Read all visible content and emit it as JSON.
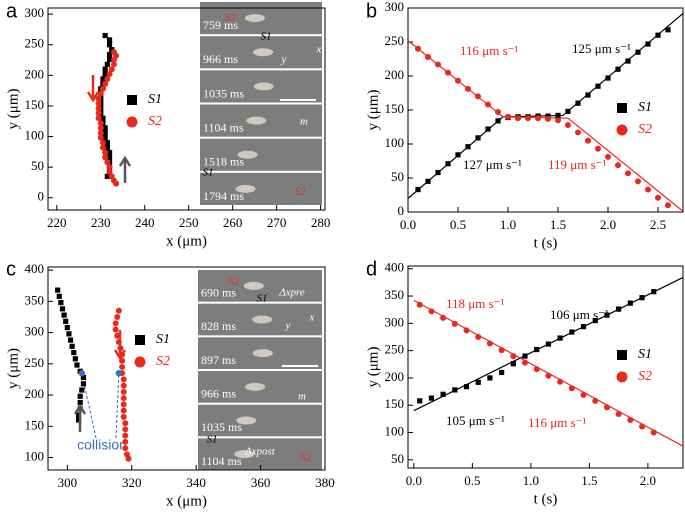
{
  "chart_data": [
    {
      "type": "scatter",
      "panel": "a",
      "x_label": "x (μm)",
      "y_label": "y (μm)",
      "xlim": [
        218,
        281
      ],
      "ylim": [
        -20,
        310
      ],
      "xticks": [
        220,
        230,
        240,
        250,
        260,
        270,
        280
      ],
      "yticks": [
        0,
        50,
        100,
        150,
        200,
        250,
        300
      ],
      "grid": false,
      "series": [
        {
          "name": "S1",
          "color": "#000000",
          "marker": "square",
          "x": [
            231,
            232,
            232,
            232.5,
            232,
            232,
            231.5,
            231,
            231,
            230.5,
            230.5,
            230,
            230,
            230,
            230,
            230,
            230,
            230.5,
            230.5,
            231,
            231,
            231,
            231.5,
            231.5,
            232,
            232,
            232,
            232,
            232,
            231.5
          ],
          "y": [
            265,
            258,
            250,
            242,
            234,
            226,
            218,
            210,
            202,
            194,
            186,
            178,
            170,
            162,
            154,
            146,
            138,
            130,
            122,
            114,
            106,
            98,
            90,
            82,
            74,
            66,
            58,
            50,
            42,
            35
          ]
        },
        {
          "name": "S2",
          "color": "#e8291c",
          "marker": "circle",
          "x": [
            233,
            233.5,
            233,
            233,
            232.5,
            232,
            231.5,
            231,
            230.5,
            230,
            229.5,
            229.5,
            229.5,
            229.5,
            229.5,
            230,
            230,
            230,
            230,
            230.5,
            230.5,
            231,
            231,
            231.5,
            232,
            232,
            232.5,
            233,
            233.5
          ],
          "y": [
            238,
            232,
            225,
            218,
            210,
            202,
            194,
            186,
            178,
            170,
            162,
            154,
            146,
            138,
            130,
            122,
            114,
            106,
            98,
            90,
            82,
            74,
            66,
            58,
            50,
            42,
            35,
            28,
            23
          ]
        }
      ],
      "frames": [
        "759 ms",
        "966 ms",
        "1035 ms",
        "1104 ms",
        "1518 ms",
        "1794 ms"
      ],
      "inset_labels": [
        "S2",
        "S1",
        "x",
        "y",
        "m",
        "S1",
        "S2"
      ]
    },
    {
      "type": "scatter",
      "panel": "b",
      "x_label": "t (s)",
      "y_label": "y (μm)",
      "xlim": [
        0,
        2.75
      ],
      "ylim": [
        0,
        300
      ],
      "xticks": [
        {
          "value": 0,
          "label": "0.0"
        },
        {
          "value": 0.5,
          "label": "0.5"
        },
        {
          "value": 1,
          "label": "1.0"
        },
        {
          "value": 1.5,
          "label": "1.5"
        },
        {
          "value": 2,
          "label": "2.0"
        },
        {
          "value": 2.5,
          "label": "2.5"
        }
      ],
      "yticks": [
        0,
        50,
        100,
        150,
        200,
        250,
        300
      ],
      "grid": false,
      "series": [
        {
          "name": "S1",
          "color": "#000000",
          "marker": "square",
          "x": [
            0.1,
            0.2,
            0.3,
            0.4,
            0.5,
            0.6,
            0.7,
            0.8,
            0.9,
            1.0,
            1.1,
            1.2,
            1.3,
            1.4,
            1.5,
            1.6,
            1.7,
            1.8,
            1.9,
            2.0,
            2.1,
            2.2,
            2.3,
            2.4,
            2.5,
            2.6
          ],
          "y": [
            33,
            45,
            58,
            71,
            84,
            96,
            109,
            122,
            134,
            139,
            140,
            140,
            141,
            141,
            142,
            148,
            160,
            172,
            185,
            197,
            210,
            222,
            235,
            247,
            260,
            268
          ]
        },
        {
          "name": "S2",
          "color": "#e8291c",
          "marker": "circle",
          "x": [
            0.1,
            0.2,
            0.3,
            0.4,
            0.5,
            0.6,
            0.7,
            0.8,
            0.9,
            1.0,
            1.1,
            1.2,
            1.3,
            1.4,
            1.5,
            1.6,
            1.7,
            1.8,
            1.9,
            2.0,
            2.1,
            2.2,
            2.3,
            2.4,
            2.5,
            2.6
          ],
          "y": [
            240,
            228,
            217,
            205,
            193,
            181,
            170,
            158,
            147,
            140,
            138,
            138,
            138,
            137,
            135,
            128,
            117,
            105,
            93,
            81,
            69,
            57,
            45,
            33,
            21,
            10
          ]
        }
      ],
      "fits": [
        {
          "color": "#000000",
          "x": [
            0,
            0.95,
            1.55,
            2.75
          ],
          "y": [
            20,
            140,
            142,
            292
          ]
        },
        {
          "color": "#e8291c",
          "x": [
            0,
            0.95,
            1.6,
            2.75
          ],
          "y": [
            252,
            140,
            138,
            1
          ]
        }
      ],
      "annotations": [
        {
          "text": "116 μm s⁻¹",
          "color": "#e8291c"
        },
        {
          "text": "125 μm s⁻¹",
          "color": "#000000"
        },
        {
          "text": "127 μm s⁻¹",
          "color": "#000000"
        },
        {
          "text": "119 μm s⁻¹",
          "color": "#e8291c"
        }
      ]
    },
    {
      "type": "scatter",
      "panel": "c",
      "x_label": "x (μm)",
      "y_label": "y (μm)",
      "xlim": [
        294,
        380
      ],
      "ylim": [
        80,
        405
      ],
      "xticks": [
        300,
        320,
        340,
        360,
        380
      ],
      "yticks": [
        100,
        150,
        200,
        250,
        300,
        350,
        400
      ],
      "grid": false,
      "series": [
        {
          "name": "S1",
          "color": "#000000",
          "marker": "square",
          "x": [
            297,
            297.5,
            298,
            298.5,
            299,
            299.5,
            300,
            300.5,
            301,
            301.5,
            302,
            302.5,
            303,
            304,
            305,
            305,
            304.5,
            304,
            304,
            304,
            303.5,
            303.5
          ],
          "y": [
            368,
            358,
            348,
            338,
            328,
            318,
            308,
            298,
            288,
            278,
            268,
            258,
            248,
            238,
            228,
            218,
            208,
            198,
            188,
            178,
            168,
            160
          ]
        },
        {
          "name": "S2",
          "color": "#e8291c",
          "marker": "circle",
          "x": [
            316,
            315.5,
            315,
            315,
            315.5,
            316,
            316.5,
            317,
            317,
            317,
            317,
            317.5,
            317.5,
            317.5,
            317.5,
            317.5,
            317.5,
            317.5,
            318,
            318,
            318,
            318,
            318,
            318.5,
            319
          ],
          "y": [
            335,
            325,
            315,
            305,
            295,
            285,
            275,
            265,
            255,
            245,
            235,
            225,
            215,
            205,
            195,
            185,
            175,
            165,
            155,
            145,
            135,
            125,
            115,
            105,
            98
          ]
        }
      ],
      "collision": {
        "text": "collision",
        "color": "#3a6fc4",
        "x": [
          304.5,
          316
        ],
        "y": [
          235,
          235
        ]
      },
      "frames": [
        "690 ms",
        "828 ms",
        "897 ms",
        "966 ms",
        "1035 ms",
        "1104 ms"
      ],
      "inset_labels": [
        "S2",
        "S1",
        "Δxpre",
        "x",
        "y",
        "m",
        "S1",
        "Δxpost",
        "S2"
      ]
    },
    {
      "type": "scatter",
      "panel": "d",
      "x_label": "t (s)",
      "y_label": "y (μm)",
      "xlim": [
        -0.05,
        2.3
      ],
      "ylim": [
        35,
        405
      ],
      "xticks": [
        {
          "value": 0,
          "label": "0.0"
        },
        {
          "value": 0.5,
          "label": "0.5"
        },
        {
          "value": 1,
          "label": "1.0"
        },
        {
          "value": 1.5,
          "label": "1.5"
        },
        {
          "value": 2,
          "label": "2.0"
        }
      ],
      "yticks": [
        50,
        100,
        150,
        200,
        250,
        300,
        350,
        400
      ],
      "grid": false,
      "series": [
        {
          "name": "S1",
          "color": "#000000",
          "marker": "square",
          "x": [
            0.05,
            0.15,
            0.25,
            0.35,
            0.45,
            0.55,
            0.65,
            0.75,
            0.85,
            0.95,
            1.05,
            1.15,
            1.25,
            1.35,
            1.45,
            1.55,
            1.65,
            1.75,
            1.85,
            1.95,
            2.05
          ],
          "y": [
            158,
            163,
            170,
            178,
            184,
            192,
            200,
            210,
            226,
            240,
            252,
            262,
            273,
            284,
            294,
            305,
            315,
            326,
            337,
            347,
            358
          ]
        },
        {
          "name": "S2",
          "color": "#e8291c",
          "marker": "circle",
          "x": [
            0.05,
            0.15,
            0.25,
            0.35,
            0.45,
            0.55,
            0.65,
            0.75,
            0.85,
            0.95,
            1.05,
            1.15,
            1.25,
            1.35,
            1.45,
            1.55,
            1.65,
            1.75,
            1.85,
            1.95,
            2.05
          ],
          "y": [
            334,
            322,
            310,
            299,
            287,
            275,
            263,
            251,
            240,
            228,
            216,
            204,
            193,
            181,
            169,
            158,
            146,
            134,
            123,
            111,
            100
          ]
        }
      ],
      "fits": [
        {
          "color": "#000000",
          "x": [
            0,
            2.3
          ],
          "y": [
            140,
            384
          ]
        },
        {
          "color": "#e8291c",
          "x": [
            0,
            2.3
          ],
          "y": [
            342,
            75
          ]
        }
      ],
      "annotations": [
        {
          "text": "118 μm s⁻¹",
          "color": "#e8291c"
        },
        {
          "text": "106 μm s⁻¹",
          "color": "#000000"
        },
        {
          "text": "105 μm s⁻¹",
          "color": "#000000"
        },
        {
          "text": "116 μm s⁻¹",
          "color": "#e8291c"
        }
      ]
    }
  ]
}
